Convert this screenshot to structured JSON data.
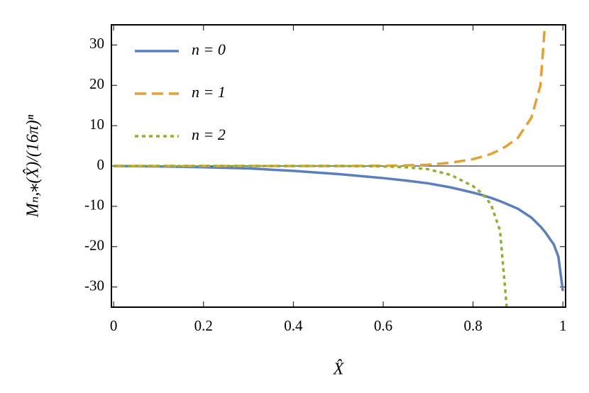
{
  "chart_data": {
    "type": "line",
    "x_label": "X̂",
    "y_label": "Mₙ,⁎(X̂)/(16π)ⁿ",
    "x": [
      0,
      0.1,
      0.2,
      0.3,
      0.4,
      0.5,
      0.6,
      0.65,
      0.7,
      0.75,
      0.8,
      0.82,
      0.84,
      0.86,
      0.875,
      0.9,
      0.93,
      0.95,
      0.96,
      0.98,
      0.99,
      1.0
    ],
    "series": [
      {
        "name": "n = 0",
        "color": "#5b7fbd",
        "dash": "solid",
        "values": [
          0,
          -0.1,
          -0.3,
          -0.6,
          -1.2,
          -2,
          -3,
          -3.6,
          -4.3,
          -5.3,
          -6.6,
          -7.2,
          -7.9,
          -8.7,
          -9.4,
          -10.6,
          -12.8,
          -15,
          -16.3,
          -19.5,
          -22.5,
          -31
        ]
      },
      {
        "name": "n = 1",
        "color": "#e4a030",
        "dash": "dashed",
        "values": [
          0,
          0,
          0,
          0,
          0,
          0,
          0.05,
          0.15,
          0.3,
          0.8,
          1.7,
          2.3,
          3,
          4,
          5,
          7,
          12,
          20,
          35,
          null,
          null,
          null
        ]
      },
      {
        "name": "n = 2",
        "color": "#8fb035",
        "dash": "dotted",
        "values": [
          0,
          0,
          0,
          0,
          0,
          0,
          -0.1,
          -0.3,
          -0.8,
          -2.2,
          -5,
          -6.8,
          -9.5,
          -16,
          -35,
          null,
          null,
          null,
          null,
          null,
          null,
          null
        ]
      }
    ],
    "xlim": [
      -0.005,
      1.006
    ],
    "ylim": [
      -35,
      35
    ],
    "xticks": [
      0,
      0.2,
      0.4,
      0.6,
      0.8,
      1
    ],
    "yticks": [
      -30,
      -20,
      -10,
      0,
      10,
      20,
      30
    ],
    "legend": "upper left"
  }
}
